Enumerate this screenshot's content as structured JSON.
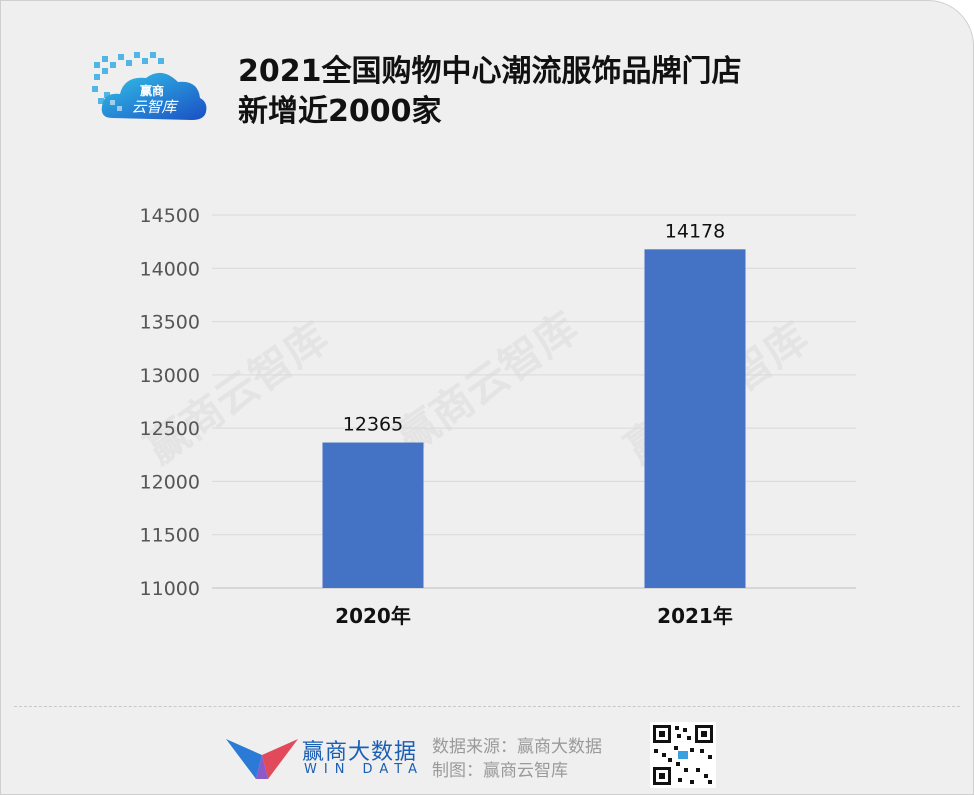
{
  "header": {
    "logo_text": [
      "赢商",
      "云智库"
    ],
    "title_line1": "2021全国购物中心潮流服饰品牌门店",
    "title_line2": "新增近2000家"
  },
  "watermark": "赢商云智库",
  "footer": {
    "brand_cn": "赢商大数据",
    "brand_en": "WIN DATA",
    "source": "数据来源：赢商大数据",
    "made_by": "制图：赢商云智库"
  },
  "colors": {
    "bar": "#4472c4",
    "background": "#efefef",
    "grid": "#d9d9d9",
    "logo_blue": "#1a5fb4"
  },
  "chart_data": {
    "type": "bar",
    "categories": [
      "2020年",
      "2021年"
    ],
    "values": [
      12365,
      14178
    ],
    "data_labels": [
      "12365",
      "14178"
    ],
    "ylim": [
      11000,
      14500
    ],
    "yticks": [
      11000,
      11500,
      12000,
      12500,
      13000,
      13500,
      14000,
      14500
    ],
    "grid": true,
    "legend": "none"
  }
}
